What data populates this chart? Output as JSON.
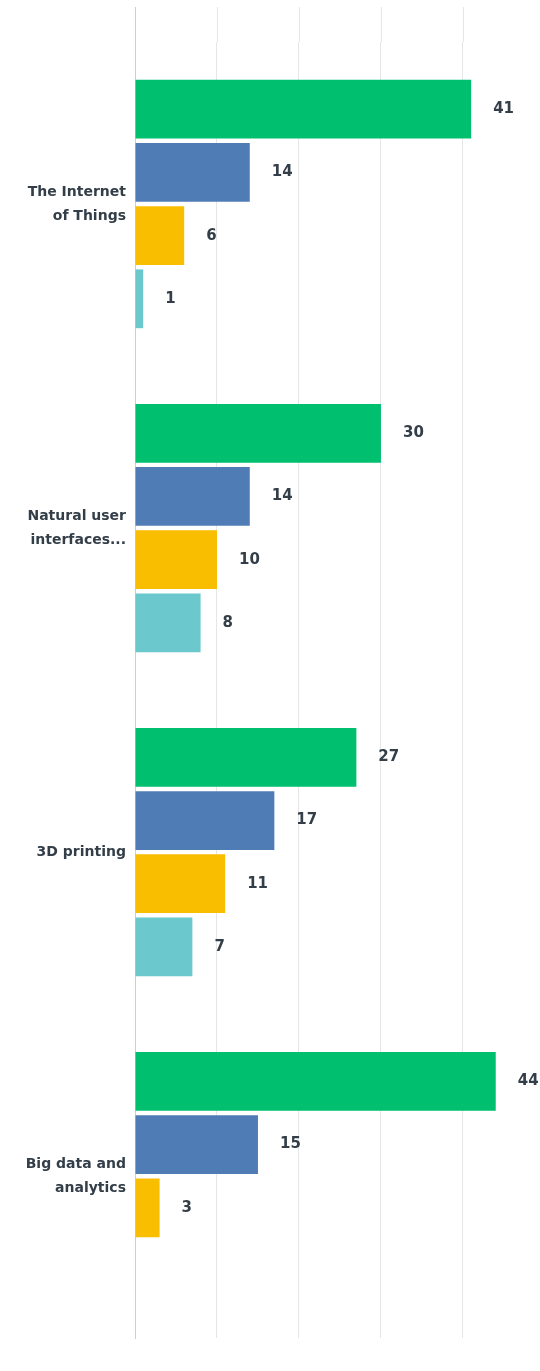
{
  "chart_data": {
    "type": "bar",
    "orientation": "horizontal",
    "categories": [
      "The Internet of Things",
      "Natural user interfaces...",
      "3D printing",
      "Big data and analytics"
    ],
    "series": [
      {
        "color": "#00bf6f",
        "values": [
          41,
          30,
          27,
          44
        ]
      },
      {
        "color": "#507cb6",
        "values": [
          14,
          14,
          17,
          15
        ]
      },
      {
        "color": "#f9be00",
        "values": [
          6,
          10,
          11,
          3
        ]
      },
      {
        "color": "#6bc8cd",
        "values": [
          1,
          8,
          7,
          null
        ]
      }
    ],
    "xlim": [
      0,
      49.4
    ],
    "xticks": [
      0,
      10,
      20,
      30,
      40
    ],
    "tick_labels": "y",
    "grid": "x",
    "data_labels": true
  }
}
